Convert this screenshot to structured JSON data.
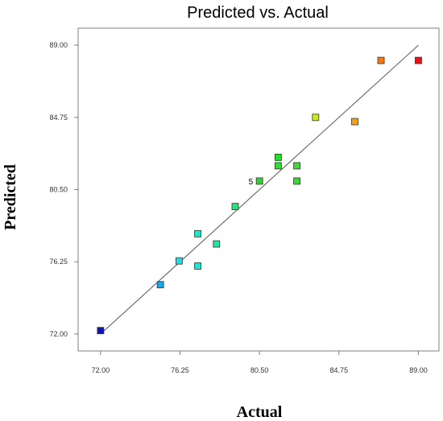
{
  "chart_data": {
    "type": "scatter",
    "title": "Predicted vs. Actual",
    "xlabel": "Actual",
    "ylabel": "Predicted",
    "xlim": [
      70.8,
      90.1
    ],
    "ylim": [
      71.0,
      90.0
    ],
    "x_ticks": [
      "72.00",
      "76.25",
      "80.50",
      "84.75",
      "89.00"
    ],
    "y_ticks": [
      "72.00",
      "76.25",
      "80.50",
      "84.75",
      "89.00"
    ],
    "grid": false,
    "legend": "none",
    "reference_line": {
      "from": [
        72.0,
        72.0
      ],
      "to": [
        89.0,
        89.0
      ],
      "color": "#555555"
    },
    "annotations": [
      {
        "text": "5",
        "x": 80.5,
        "y": 81.0
      }
    ],
    "points": [
      {
        "x": 72.0,
        "y": 72.2,
        "color": "#1010c8"
      },
      {
        "x": 75.2,
        "y": 74.9,
        "color": "#1ea4e6"
      },
      {
        "x": 76.2,
        "y": 76.3,
        "color": "#1ee0e6"
      },
      {
        "x": 77.2,
        "y": 76.0,
        "color": "#1ee6d2"
      },
      {
        "x": 77.2,
        "y": 77.9,
        "color": "#1ee6c8"
      },
      {
        "x": 78.2,
        "y": 77.3,
        "color": "#1ee6a0"
      },
      {
        "x": 79.2,
        "y": 79.5,
        "color": "#1ee678"
      },
      {
        "x": 80.5,
        "y": 81.0,
        "color": "#32d232"
      },
      {
        "x": 81.5,
        "y": 81.9,
        "color": "#32dc32"
      },
      {
        "x": 81.5,
        "y": 82.4,
        "color": "#28dc28"
      },
      {
        "x": 82.5,
        "y": 81.9,
        "color": "#3cdc3c"
      },
      {
        "x": 82.5,
        "y": 81.0,
        "color": "#32dc32"
      },
      {
        "x": 83.5,
        "y": 84.75,
        "color": "#c8e632"
      },
      {
        "x": 85.6,
        "y": 84.5,
        "color": "#f5a014"
      },
      {
        "x": 87.0,
        "y": 88.1,
        "color": "#f57814"
      },
      {
        "x": 89.0,
        "y": 88.1,
        "color": "#e61414"
      }
    ]
  }
}
